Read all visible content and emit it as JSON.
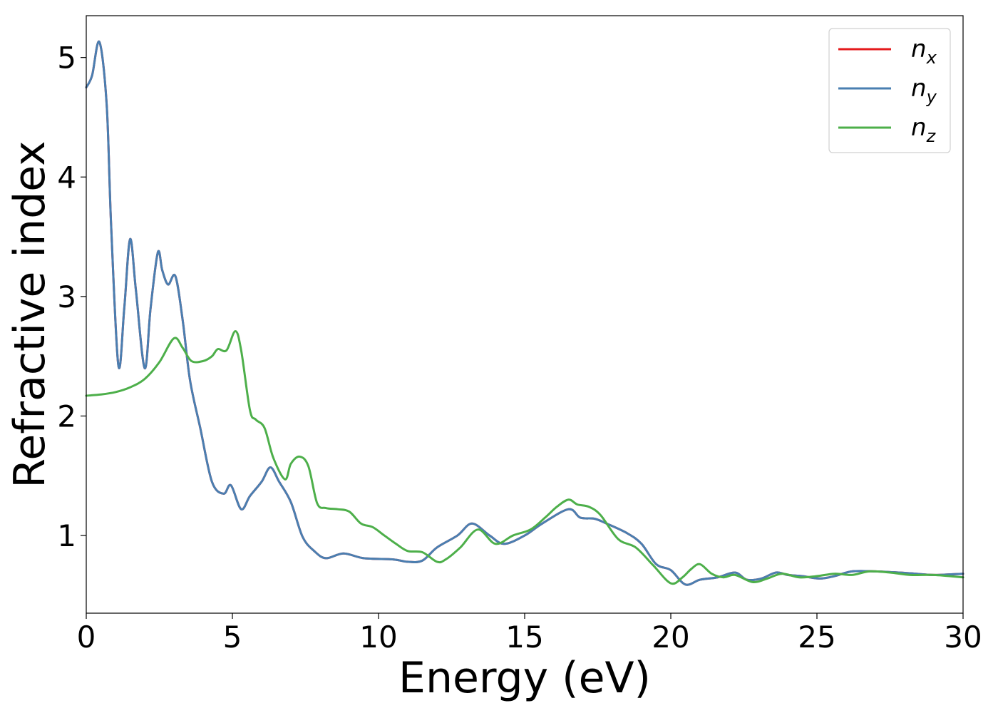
{
  "chart_data": {
    "type": "line",
    "title": "",
    "xlabel": "Energy (eV)",
    "ylabel": "Refractive index",
    "xlim": [
      0,
      30
    ],
    "ylim": [
      0.35,
      5.35
    ],
    "xticks": [
      0,
      5,
      10,
      15,
      20,
      25,
      30
    ],
    "yticks": [
      1,
      2,
      3,
      4,
      5
    ],
    "grid": false,
    "legend_position": "top-right",
    "series": [
      {
        "name": "n",
        "subscript": "x",
        "color": "#e41a1c",
        "x": [
          0,
          0.2,
          0.45,
          0.7,
          0.85,
          1.1,
          1.3,
          1.5,
          1.7,
          2.0,
          2.2,
          2.45,
          2.6,
          2.8,
          3.05,
          3.3,
          3.55,
          3.9,
          4.3,
          4.7,
          4.95,
          5.3,
          5.6,
          6.0,
          6.3,
          6.6,
          7.0,
          7.4,
          7.8,
          8.2,
          8.8,
          9.5,
          10.5,
          11.0,
          11.5,
          12.0,
          12.7,
          13.2,
          13.8,
          14.3,
          15.0,
          15.6,
          16.5,
          16.9,
          17.4,
          17.8,
          18.5,
          19.0,
          19.5,
          20.0,
          20.5,
          21.0,
          21.6,
          22.2,
          22.6,
          23.1,
          23.6,
          24.0,
          24.5,
          25.1,
          25.6,
          26.2,
          27.0,
          27.8,
          28.4,
          29.0,
          30.0
        ],
        "y": [
          4.75,
          4.85,
          5.13,
          4.6,
          3.6,
          2.42,
          2.9,
          3.48,
          3.05,
          2.4,
          2.9,
          3.37,
          3.22,
          3.1,
          3.17,
          2.8,
          2.3,
          1.9,
          1.45,
          1.35,
          1.42,
          1.22,
          1.33,
          1.45,
          1.57,
          1.45,
          1.28,
          0.99,
          0.87,
          0.81,
          0.85,
          0.81,
          0.8,
          0.78,
          0.79,
          0.9,
          1.0,
          1.1,
          1.0,
          0.93,
          1.0,
          1.1,
          1.22,
          1.15,
          1.14,
          1.1,
          1.02,
          0.93,
          0.76,
          0.71,
          0.59,
          0.63,
          0.65,
          0.69,
          0.63,
          0.64,
          0.69,
          0.67,
          0.66,
          0.64,
          0.66,
          0.7,
          0.7,
          0.69,
          0.68,
          0.67,
          0.68
        ]
      },
      {
        "name": "n",
        "subscript": "y",
        "color": "#4a7fb1",
        "x": [
          0,
          0.2,
          0.45,
          0.7,
          0.85,
          1.1,
          1.3,
          1.5,
          1.7,
          2.0,
          2.2,
          2.45,
          2.6,
          2.8,
          3.05,
          3.3,
          3.55,
          3.9,
          4.3,
          4.7,
          4.95,
          5.3,
          5.6,
          6.0,
          6.3,
          6.6,
          7.0,
          7.4,
          7.8,
          8.2,
          8.8,
          9.5,
          10.5,
          11.0,
          11.5,
          12.0,
          12.7,
          13.2,
          13.8,
          14.3,
          15.0,
          15.6,
          16.5,
          16.9,
          17.4,
          17.8,
          18.5,
          19.0,
          19.5,
          20.0,
          20.5,
          21.0,
          21.6,
          22.2,
          22.6,
          23.1,
          23.6,
          24.0,
          24.5,
          25.1,
          25.6,
          26.2,
          27.0,
          27.8,
          28.4,
          29.0,
          30.0
        ],
        "y": [
          4.75,
          4.85,
          5.13,
          4.6,
          3.6,
          2.42,
          2.9,
          3.48,
          3.05,
          2.4,
          2.9,
          3.37,
          3.22,
          3.1,
          3.17,
          2.8,
          2.3,
          1.9,
          1.45,
          1.35,
          1.42,
          1.22,
          1.33,
          1.45,
          1.57,
          1.45,
          1.28,
          0.99,
          0.87,
          0.81,
          0.85,
          0.81,
          0.8,
          0.78,
          0.79,
          0.9,
          1.0,
          1.1,
          1.0,
          0.93,
          1.0,
          1.1,
          1.22,
          1.15,
          1.14,
          1.1,
          1.02,
          0.93,
          0.76,
          0.71,
          0.59,
          0.63,
          0.65,
          0.69,
          0.63,
          0.64,
          0.69,
          0.67,
          0.66,
          0.64,
          0.66,
          0.7,
          0.7,
          0.69,
          0.68,
          0.67,
          0.68
        ]
      },
      {
        "name": "n",
        "subscript": "z",
        "color": "#4daf4a",
        "x": [
          0,
          0.5,
          1.0,
          1.5,
          2.0,
          2.5,
          3.0,
          3.3,
          3.6,
          4.0,
          4.3,
          4.5,
          4.8,
          5.1,
          5.3,
          5.6,
          5.8,
          6.1,
          6.4,
          6.8,
          7.0,
          7.3,
          7.6,
          7.9,
          8.2,
          8.6,
          9.0,
          9.4,
          9.8,
          10.2,
          10.6,
          11.0,
          11.5,
          12.0,
          12.3,
          12.8,
          13.4,
          14.0,
          14.6,
          15.2,
          15.7,
          16.1,
          16.5,
          16.8,
          17.2,
          17.6,
          18.2,
          18.8,
          19.4,
          20.0,
          20.4,
          20.7,
          21.0,
          21.4,
          21.8,
          22.2,
          22.8,
          23.3,
          23.8,
          24.4,
          25.0,
          25.6,
          26.2,
          26.8,
          27.5,
          28.2,
          29.0,
          30.0
        ],
        "y": [
          2.17,
          2.18,
          2.2,
          2.24,
          2.31,
          2.45,
          2.65,
          2.57,
          2.46,
          2.46,
          2.5,
          2.56,
          2.55,
          2.71,
          2.55,
          2.05,
          1.97,
          1.9,
          1.65,
          1.47,
          1.6,
          1.66,
          1.58,
          1.27,
          1.23,
          1.22,
          1.2,
          1.1,
          1.07,
          1.0,
          0.93,
          0.87,
          0.86,
          0.78,
          0.8,
          0.9,
          1.05,
          0.93,
          1.0,
          1.05,
          1.15,
          1.24,
          1.3,
          1.26,
          1.24,
          1.17,
          0.97,
          0.9,
          0.75,
          0.6,
          0.65,
          0.72,
          0.76,
          0.68,
          0.65,
          0.67,
          0.61,
          0.64,
          0.68,
          0.65,
          0.66,
          0.68,
          0.67,
          0.7,
          0.69,
          0.67,
          0.67,
          0.65
        ]
      }
    ]
  }
}
